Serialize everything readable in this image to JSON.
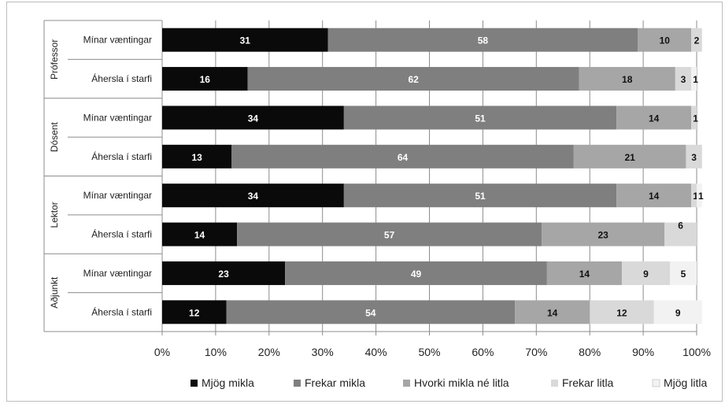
{
  "chart_data": {
    "type": "bar",
    "orientation": "horizontal",
    "stacked": true,
    "groups": [
      {
        "name": "Prófessor",
        "rows": [
          {
            "label": "Mínar væntingar",
            "values": [
              31,
              58,
              10,
              2,
              0
            ],
            "labels": [
              "31",
              "58",
              "10",
              "2",
              ""
            ]
          },
          {
            "label": "Áhersla í starfi",
            "values": [
              16,
              62,
              18,
              3,
              1
            ],
            "labels": [
              "16",
              "62",
              "18",
              "3",
              "1"
            ]
          }
        ]
      },
      {
        "name": "Dósent",
        "rows": [
          {
            "label": "Mínar væntingar",
            "values": [
              34,
              51,
              14,
              1,
              0
            ],
            "labels": [
              "34",
              "51",
              "14",
              "1",
              ""
            ]
          },
          {
            "label": "Áhersla í starfi",
            "values": [
              13,
              64,
              21,
              3,
              0
            ],
            "labels": [
              "13",
              "64",
              "21",
              "3",
              ""
            ]
          }
        ]
      },
      {
        "name": "Lektor",
        "rows": [
          {
            "label": "Mínar væntingar",
            "values": [
              34,
              51,
              14,
              1,
              1
            ],
            "labels": [
              "34",
              "51",
              "14",
              "1",
              "1"
            ]
          },
          {
            "label": "Áhersla í starfi",
            "values": [
              14,
              57,
              23,
              6,
              0
            ],
            "labels": [
              "14",
              "57",
              "23",
              "6",
              ""
            ]
          }
        ]
      },
      {
        "name": "Aðjunkt",
        "rows": [
          {
            "label": "Mínar væntingar",
            "values": [
              23,
              49,
              14,
              9,
              5
            ],
            "labels": [
              "23",
              "49",
              "14",
              "9",
              "5"
            ]
          },
          {
            "label": "Áhersla í starfi",
            "values": [
              12,
              54,
              14,
              12,
              9
            ],
            "labels": [
              "12",
              "54",
              "14",
              "12",
              "9"
            ]
          }
        ]
      }
    ],
    "series": [
      {
        "name": "Mjög mikla",
        "color": "#0a0a0a",
        "label_color": "#ffffff"
      },
      {
        "name": "Frekar mikla",
        "color": "#7f7f7f",
        "label_color": "#ffffff"
      },
      {
        "name": "Hvorki mikla né litla",
        "color": "#a6a6a6",
        "label_color": "#111111"
      },
      {
        "name": "Frekar litla",
        "color": "#d9d9d9",
        "label_color": "#111111"
      },
      {
        "name": "Mjög litla",
        "color": "#f2f2f2",
        "label_color": "#111111"
      }
    ],
    "x_ticks": [
      "0%",
      "10%",
      "20%",
      "30%",
      "40%",
      "50%",
      "60%",
      "70%",
      "80%",
      "90%",
      "100%"
    ],
    "xlim": [
      0,
      100
    ],
    "grid": true,
    "legend_position": "bottom"
  }
}
